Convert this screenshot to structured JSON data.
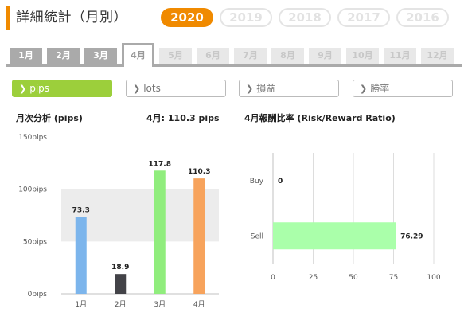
{
  "header": {
    "title": "詳細統計（月別）",
    "years": [
      "2020",
      "2019",
      "2018",
      "2017",
      "2016"
    ],
    "active_year": "2020"
  },
  "months": [
    "1月",
    "2月",
    "3月",
    "4月",
    "5月",
    "6月",
    "7月",
    "8月",
    "9月",
    "10月",
    "11月",
    "12月"
  ],
  "active_month_index": 3,
  "filters": [
    "pips",
    "lots",
    "損益",
    "勝率"
  ],
  "active_filter": "pips",
  "left_chart_title": "月次分析 (pips)",
  "left_chart_summary": "4月:  110.3 pips",
  "right_chart_title": "4月報酬比率 (Risk/Reward Ratio)",
  "colors": {
    "accent": "#f08a00",
    "filter_active": "#9ccf3b"
  },
  "chart_data": [
    {
      "type": "bar",
      "title": "月次分析 (pips)",
      "categories": [
        "1月",
        "2月",
        "3月",
        "4月"
      ],
      "values": [
        73.3,
        18.9,
        117.8,
        110.3
      ],
      "value_labels": [
        "73.3",
        "18.9",
        "117.8",
        "110.3"
      ],
      "colors": [
        "#7cb5ec",
        "#434348",
        "#90ed7d",
        "#f7a35c"
      ],
      "yticks": [
        "0pips",
        "50pips",
        "100pips",
        "150pips"
      ],
      "ylim": [
        0,
        150
      ],
      "grid": "alternating bands"
    },
    {
      "type": "bar",
      "orientation": "horizontal",
      "title": "4月報酬比率 (Risk/Reward Ratio)",
      "categories": [
        "Buy",
        "Sell"
      ],
      "values": [
        0,
        76.29
      ],
      "value_labels": [
        "0",
        "76.29"
      ],
      "color": "#aaffaa",
      "xticks": [
        "0",
        "25",
        "50",
        "75",
        "100"
      ],
      "xlim": [
        0,
        100
      ],
      "grid": "vertical lines"
    }
  ]
}
